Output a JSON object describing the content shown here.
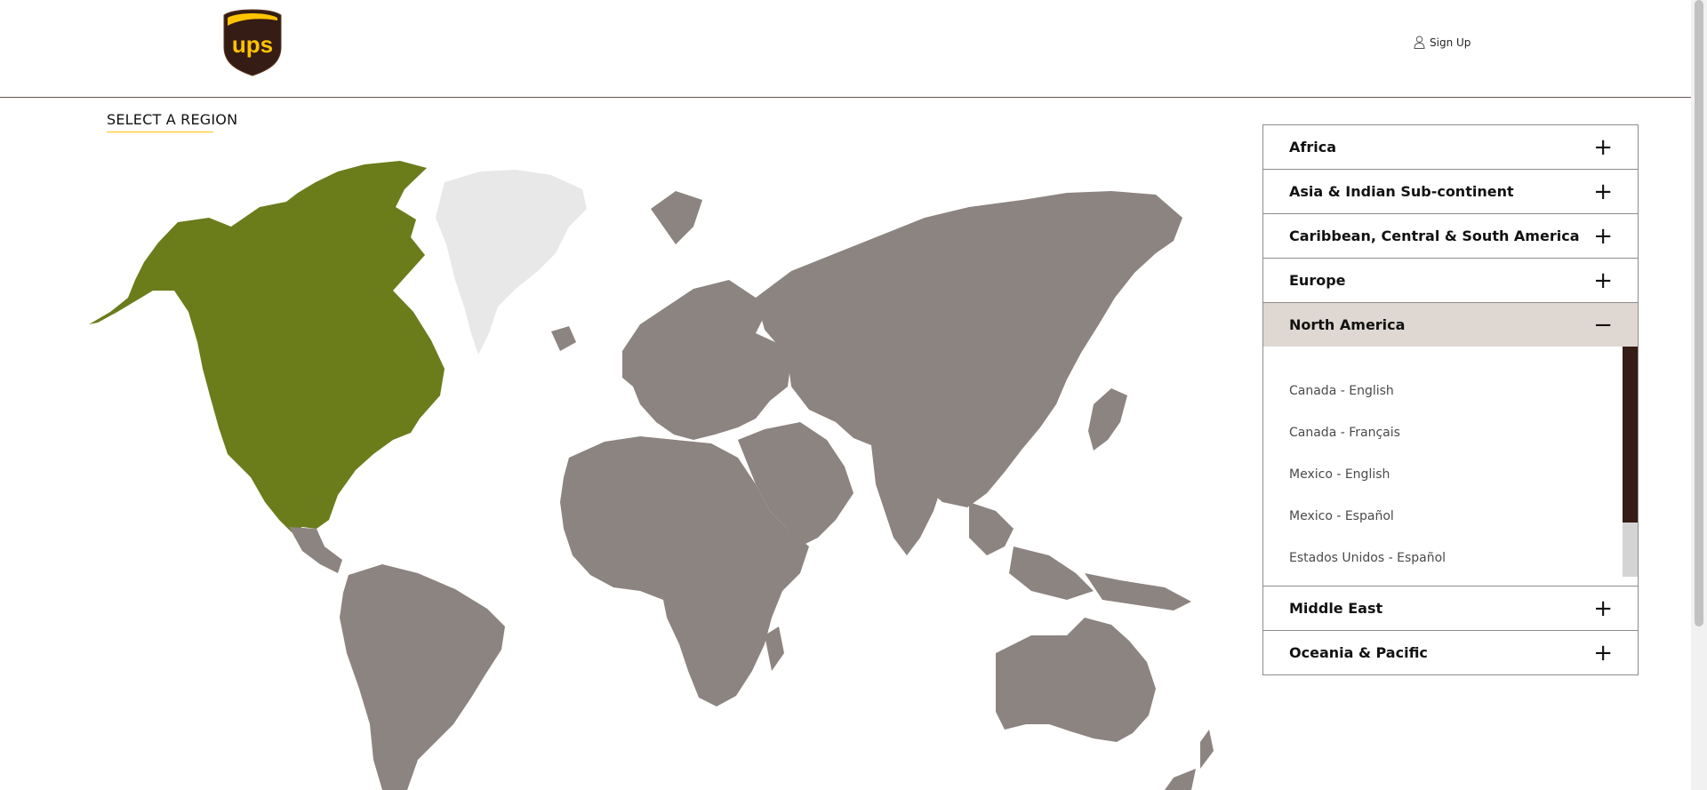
{
  "header": {
    "logo_text": "ups",
    "signup_label": "Sign Up"
  },
  "main": {
    "title": "SELECT A REGION"
  },
  "accordion": {
    "regions": [
      {
        "label": "Africa",
        "icon": "+"
      },
      {
        "label": "Asia & Indian Sub-continent",
        "icon": "+"
      },
      {
        "label": "Caribbean, Central & South America",
        "icon": "+"
      },
      {
        "label": "Europe",
        "icon": "+"
      },
      {
        "label": "North America",
        "icon": "−"
      },
      {
        "label": "Middle East",
        "icon": "+"
      },
      {
        "label": "Oceania & Pacific",
        "icon": "+"
      }
    ],
    "north_america_links": [
      "Canada - English",
      "Canada - Français",
      "Mexico - English",
      "Mexico - Español",
      "Estados Unidos - Español"
    ]
  },
  "colors": {
    "ups_brown": "#351c15",
    "ups_gold": "#ffc400",
    "map_selected": "#6b7c1b",
    "map_default": "#8c8480",
    "map_greenland": "#e8e8e8",
    "open_header_bg": "#dfd8d2"
  }
}
